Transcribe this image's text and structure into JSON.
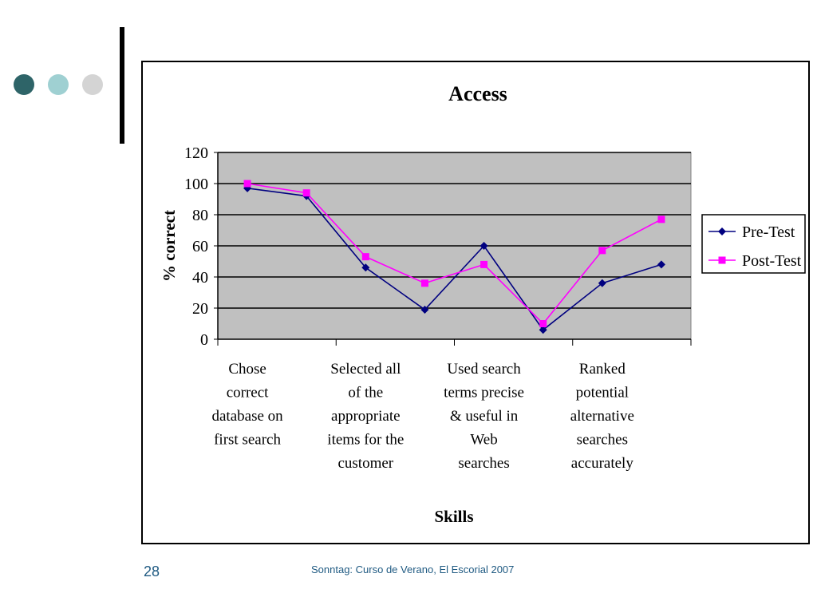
{
  "slide": {
    "page_number": "28",
    "footer": "Sonntag: Curso de Verano, El Escorial 2007",
    "decor_dots": [
      {
        "name": "dot-dark-teal",
        "color": "#2e6468"
      },
      {
        "name": "dot-light-teal",
        "color": "#9fd0d2"
      },
      {
        "name": "dot-gray",
        "color": "#d4d4d4"
      }
    ]
  },
  "chart_data": {
    "type": "line",
    "title": "Access",
    "xlabel": "Skills",
    "ylabel": "% correct",
    "ylim": [
      0,
      120
    ],
    "yticks": [
      0,
      20,
      40,
      60,
      80,
      100,
      120
    ],
    "grid": true,
    "plot_background": "#c0c0c0",
    "legend_position": "right",
    "x_points": 8,
    "category_labels": [
      {
        "index": 0,
        "lines": [
          "Chose",
          "correct",
          "database on",
          "first search"
        ]
      },
      {
        "index": 2,
        "lines": [
          "Selected all",
          "of the",
          "appropriate",
          "items for the",
          "customer"
        ]
      },
      {
        "index": 4,
        "lines": [
          "Used search",
          "terms precise",
          "& useful in",
          "Web",
          "searches"
        ]
      },
      {
        "index": 6,
        "lines": [
          "Ranked",
          "potential",
          "alternative",
          "searches",
          "accurately"
        ]
      }
    ],
    "series": [
      {
        "name": "Pre-Test",
        "color": "#000080",
        "marker": "diamond",
        "values": [
          97,
          92,
          46,
          19,
          60,
          6,
          36,
          48
        ]
      },
      {
        "name": "Post-Test",
        "color": "#ff00ff",
        "marker": "square",
        "values": [
          100,
          94,
          53,
          36,
          48,
          10,
          57,
          77
        ]
      }
    ]
  }
}
